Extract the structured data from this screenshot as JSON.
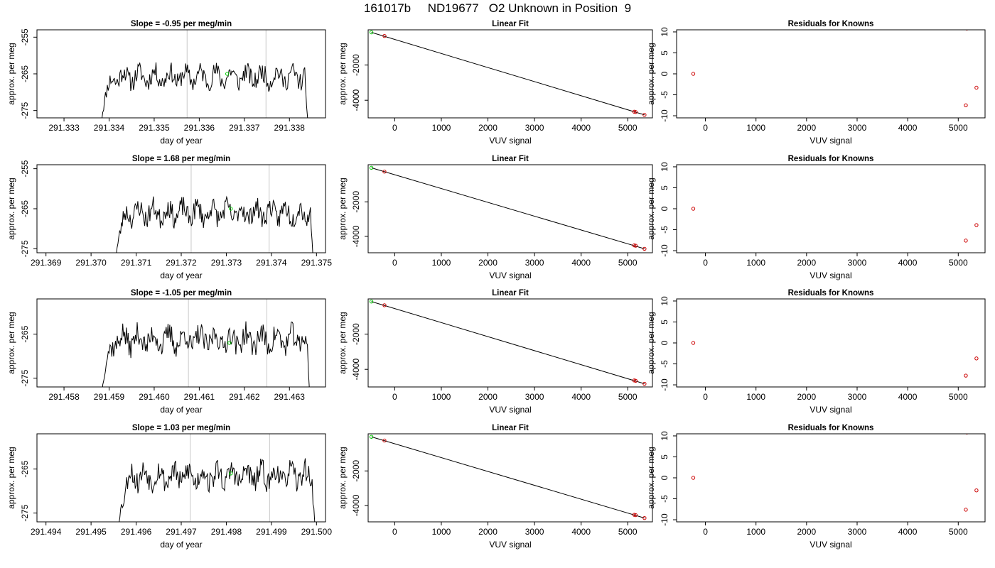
{
  "figure": {
    "title": "161017b     ND19677   O2 Unknown in Position  9"
  },
  "chart_data": [
    {
      "type": "line",
      "row": 1,
      "kind": "timeseries",
      "title": "Slope =  -0.95  per meg/min",
      "xlabel": "day of year",
      "ylabel": "approx. per meg",
      "xlim": [
        291.3324,
        291.3388
      ],
      "ylim": [
        -277,
        -253
      ],
      "xticks": [
        291.333,
        291.334,
        291.335,
        291.336,
        291.337,
        291.338
      ],
      "xtick_labels": [
        "291.333",
        "291.334",
        "291.335",
        "291.336",
        "291.337",
        "291.338"
      ],
      "yticks": [
        -255,
        -265,
        -275
      ],
      "ytick_labels": [
        "-255",
        "-265",
        "-275"
      ],
      "vlines": [
        291.33573,
        291.33748
      ],
      "start": 291.33382,
      "end": 291.33842,
      "level": -265.8,
      "seed": 11,
      "highlight": {
        "x": 291.33662,
        "y": -265
      }
    },
    {
      "type": "scatter",
      "row": 1,
      "kind": "fit",
      "title": "Linear Fit",
      "xlabel": "VUV signal",
      "ylabel": "approx. per meg",
      "xlim": [
        -570,
        5530
      ],
      "ylim": [
        -5000,
        0
      ],
      "xticks": [
        0,
        1000,
        2000,
        3000,
        4000,
        5000
      ],
      "xtick_labels": [
        "0",
        "1000",
        "2000",
        "3000",
        "4000",
        "5000"
      ],
      "yticks": [
        -2000,
        -4000
      ],
      "ytick_labels": [
        "-2000",
        "-4000"
      ],
      "points": [
        {
          "x": -220,
          "y": -350
        },
        {
          "x": 5140,
          "y": -4650
        },
        {
          "x": 5170,
          "y": -4668
        },
        {
          "x": 5360,
          "y": -4830
        }
      ],
      "unknown": {
        "x": -500,
        "y": -145
      },
      "line": [
        [
          -500,
          -145
        ],
        [
          5360,
          -4830
        ]
      ]
    },
    {
      "type": "scatter",
      "row": 1,
      "kind": "resid",
      "title": "Residuals for Knowns",
      "xlabel": "VUV signal",
      "ylabel": "approx. per meg",
      "xlim": [
        -570,
        5530
      ],
      "ylim": [
        -10.5,
        10.5
      ],
      "xticks": [
        0,
        1000,
        2000,
        3000,
        4000,
        5000
      ],
      "xtick_labels": [
        "0",
        "1000",
        "2000",
        "3000",
        "4000",
        "5000"
      ],
      "yticks": [
        10,
        5,
        0,
        -5,
        -10
      ],
      "ytick_labels": [
        "10",
        "5",
        "0",
        "-5",
        "-10"
      ],
      "points": [
        {
          "x": -240,
          "y": 0
        },
        {
          "x": 5150,
          "y": -7.5
        },
        {
          "x": 5170,
          "y": 10.8
        },
        {
          "x": 5360,
          "y": -3.3
        }
      ]
    },
    {
      "type": "line",
      "row": 2,
      "kind": "timeseries",
      "title": "Slope =  1.68  per meg/min",
      "xlabel": "day of year",
      "ylabel": "approx. per meg",
      "xlim": [
        291.3688,
        291.3752
      ],
      "ylim": [
        -276,
        -254
      ],
      "xticks": [
        291.369,
        291.37,
        291.371,
        291.372,
        291.373,
        291.374,
        291.375
      ],
      "xtick_labels": [
        "291.369",
        "291.370",
        "291.371",
        "291.372",
        "291.373",
        "291.374",
        "291.375"
      ],
      "yticks": [
        -255,
        -265,
        -275
      ],
      "ytick_labels": [
        "-255",
        "-265",
        "-275"
      ],
      "vlines": [
        291.37222,
        291.37395
      ],
      "start": 291.37054,
      "end": 291.37494,
      "level": -266.0,
      "seed": 23,
      "highlight": {
        "x": 291.3731,
        "y": -265
      }
    },
    {
      "type": "scatter",
      "row": 2,
      "kind": "fit",
      "title": "Linear Fit",
      "xlabel": "VUV signal",
      "ylabel": "approx. per meg",
      "xlim": [
        -570,
        5530
      ],
      "ylim": [
        -4950,
        150
      ],
      "xticks": [
        0,
        1000,
        2000,
        3000,
        4000,
        5000
      ],
      "xtick_labels": [
        "0",
        "1000",
        "2000",
        "3000",
        "4000",
        "5000"
      ],
      "yticks": [
        -2000,
        -4000
      ],
      "ytick_labels": [
        "-2000",
        "-4000"
      ],
      "points": [
        {
          "x": -220,
          "y": -250
        },
        {
          "x": 5140,
          "y": -4520
        },
        {
          "x": 5170,
          "y": -4540
        },
        {
          "x": 5360,
          "y": -4720
        }
      ],
      "unknown": {
        "x": -500,
        "y": -30
      },
      "line": [
        [
          -500,
          -30
        ],
        [
          5360,
          -4720
        ]
      ]
    },
    {
      "type": "scatter",
      "row": 2,
      "kind": "resid",
      "title": "Residuals for Knowns",
      "xlabel": "VUV signal",
      "ylabel": "approx. per meg",
      "xlim": [
        -570,
        5530
      ],
      "ylim": [
        -10.5,
        10.5
      ],
      "xticks": [
        0,
        1000,
        2000,
        3000,
        4000,
        5000
      ],
      "xtick_labels": [
        "0",
        "1000",
        "2000",
        "3000",
        "4000",
        "5000"
      ],
      "yticks": [
        10,
        5,
        0,
        -5,
        -10
      ],
      "ytick_labels": [
        "10",
        "5",
        "0",
        "-5",
        "-10"
      ],
      "points": [
        {
          "x": -240,
          "y": 0
        },
        {
          "x": 5150,
          "y": -7.6
        },
        {
          "x": 5360,
          "y": -3.9
        }
      ]
    },
    {
      "type": "line",
      "row": 3,
      "kind": "timeseries",
      "title": "Slope =  -1.05  per meg/min",
      "xlabel": "day of year",
      "ylabel": "approx. per meg",
      "xlim": [
        291.4574,
        291.4638
      ],
      "ylim": [
        -277,
        -257
      ],
      "xticks": [
        291.458,
        291.459,
        291.46,
        291.461,
        291.462,
        291.463
      ],
      "xtick_labels": [
        "291.458",
        "291.459",
        "291.460",
        "291.461",
        "291.462",
        "291.463"
      ],
      "yticks": [
        -265,
        -275
      ],
      "ytick_labels": [
        "-265",
        "-275"
      ],
      "vlines": [
        291.46076,
        291.4625
      ],
      "start": 291.45884,
      "end": 291.46346,
      "level": -266.3,
      "seed": 37,
      "highlight": {
        "x": 291.46167,
        "y": -267
      }
    },
    {
      "type": "scatter",
      "row": 3,
      "kind": "fit",
      "title": "Linear Fit",
      "xlabel": "VUV signal",
      "ylabel": "approx. per meg",
      "xlim": [
        -570,
        5530
      ],
      "ylim": [
        -5000,
        0
      ],
      "xticks": [
        0,
        1000,
        2000,
        3000,
        4000,
        5000
      ],
      "xtick_labels": [
        "0",
        "1000",
        "2000",
        "3000",
        "4000",
        "5000"
      ],
      "yticks": [
        -2000,
        -4000
      ],
      "ytick_labels": [
        "-2000",
        "-4000"
      ],
      "points": [
        {
          "x": -220,
          "y": -360
        },
        {
          "x": 5140,
          "y": -4630
        },
        {
          "x": 5170,
          "y": -4650
        },
        {
          "x": 5360,
          "y": -4820
        }
      ],
      "unknown": {
        "x": -500,
        "y": -150
      },
      "line": [
        [
          -500,
          -150
        ],
        [
          5360,
          -4820
        ]
      ]
    },
    {
      "type": "scatter",
      "row": 3,
      "kind": "resid",
      "title": "Residuals for Knowns",
      "xlabel": "VUV signal",
      "ylabel": "approx. per meg",
      "xlim": [
        -570,
        5530
      ],
      "ylim": [
        -10.5,
        10.5
      ],
      "xticks": [
        0,
        1000,
        2000,
        3000,
        4000,
        5000
      ],
      "xtick_labels": [
        "0",
        "1000",
        "2000",
        "3000",
        "4000",
        "5000"
      ],
      "yticks": [
        10,
        5,
        0,
        -5,
        -10
      ],
      "ytick_labels": [
        "10",
        "5",
        "0",
        "-5",
        "-10"
      ],
      "points": [
        {
          "x": -240,
          "y": 0
        },
        {
          "x": 5150,
          "y": -7.8
        },
        {
          "x": 5360,
          "y": -3.7
        }
      ]
    },
    {
      "type": "line",
      "row": 4,
      "kind": "timeseries",
      "title": "Slope =  1.03  per meg/min",
      "xlabel": "day of year",
      "ylabel": "approx. per meg",
      "xlim": [
        291.4938,
        291.5002
      ],
      "ylim": [
        -277,
        -257
      ],
      "xticks": [
        291.494,
        291.495,
        291.496,
        291.497,
        291.498,
        291.499,
        291.5
      ],
      "xtick_labels": [
        "291.494",
        "291.495",
        "291.496",
        "291.497",
        "291.498",
        "291.499",
        "291.500"
      ],
      "yticks": [
        -265,
        -275
      ],
      "ytick_labels": [
        "-265",
        "-275"
      ],
      "vlines": [
        291.4972,
        291.49896
      ],
      "start": 291.4956,
      "end": 291.49998,
      "level": -266.6,
      "seed": 53,
      "highlight": {
        "x": 291.4981,
        "y": -266
      }
    },
    {
      "type": "scatter",
      "row": 4,
      "kind": "fit",
      "title": "Linear Fit",
      "xlabel": "VUV signal",
      "ylabel": "approx. per meg",
      "xlim": [
        -570,
        5530
      ],
      "ylim": [
        -4950,
        150
      ],
      "xticks": [
        0,
        1000,
        2000,
        3000,
        4000,
        5000
      ],
      "xtick_labels": [
        "0",
        "1000",
        "2000",
        "3000",
        "4000",
        "5000"
      ],
      "yticks": [
        -2000,
        -4000
      ],
      "ytick_labels": [
        "-2000",
        "-4000"
      ],
      "points": [
        {
          "x": -220,
          "y": -240
        },
        {
          "x": 5140,
          "y": -4540
        },
        {
          "x": 5170,
          "y": -4560
        },
        {
          "x": 5360,
          "y": -4730
        }
      ],
      "unknown": {
        "x": -500,
        "y": -25
      },
      "line": [
        [
          -500,
          -25
        ],
        [
          5360,
          -4730
        ]
      ]
    },
    {
      "type": "scatter",
      "row": 4,
      "kind": "resid",
      "title": "Residuals for Knowns",
      "xlabel": "VUV signal",
      "ylabel": "approx. per meg",
      "xlim": [
        -570,
        5530
      ],
      "ylim": [
        -10.5,
        10.5
      ],
      "xticks": [
        0,
        1000,
        2000,
        3000,
        4000,
        5000
      ],
      "xtick_labels": [
        "0",
        "1000",
        "2000",
        "3000",
        "4000",
        "5000"
      ],
      "yticks": [
        10,
        5,
        0,
        -5,
        -10
      ],
      "ytick_labels": [
        "10",
        "5",
        "0",
        "-5",
        "-10"
      ],
      "points": [
        {
          "x": -240,
          "y": 0
        },
        {
          "x": 5150,
          "y": -7.6
        },
        {
          "x": 5170,
          "y": 10.8
        },
        {
          "x": 5360,
          "y": -3.0
        }
      ]
    }
  ],
  "colors": {
    "line": "#000000",
    "known_marker": "#cc0000",
    "unknown_marker": "#00cc00",
    "vline": "#c8c8c8",
    "frame": "#000000"
  }
}
